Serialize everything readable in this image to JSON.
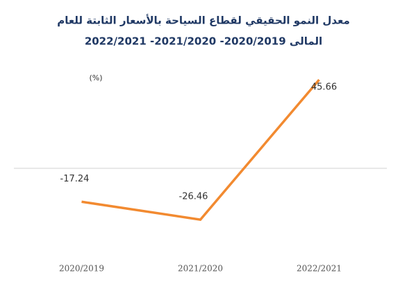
{
  "chart_data": {
    "type": "line",
    "title": "معدل النمو الحقيقي لقطاع السياحة بالأسعار الثابتة للعام",
    "subtitle": "المالى 2020/2019- 2021/2020- 2022/2021",
    "y_label": "(%)",
    "categories": [
      "2020/2019",
      "2021/2020",
      "2022/2021"
    ],
    "values": [
      -17.24,
      -26.46,
      45.66
    ],
    "color": "#f28a30",
    "ylim": [
      -45,
      55
    ]
  }
}
